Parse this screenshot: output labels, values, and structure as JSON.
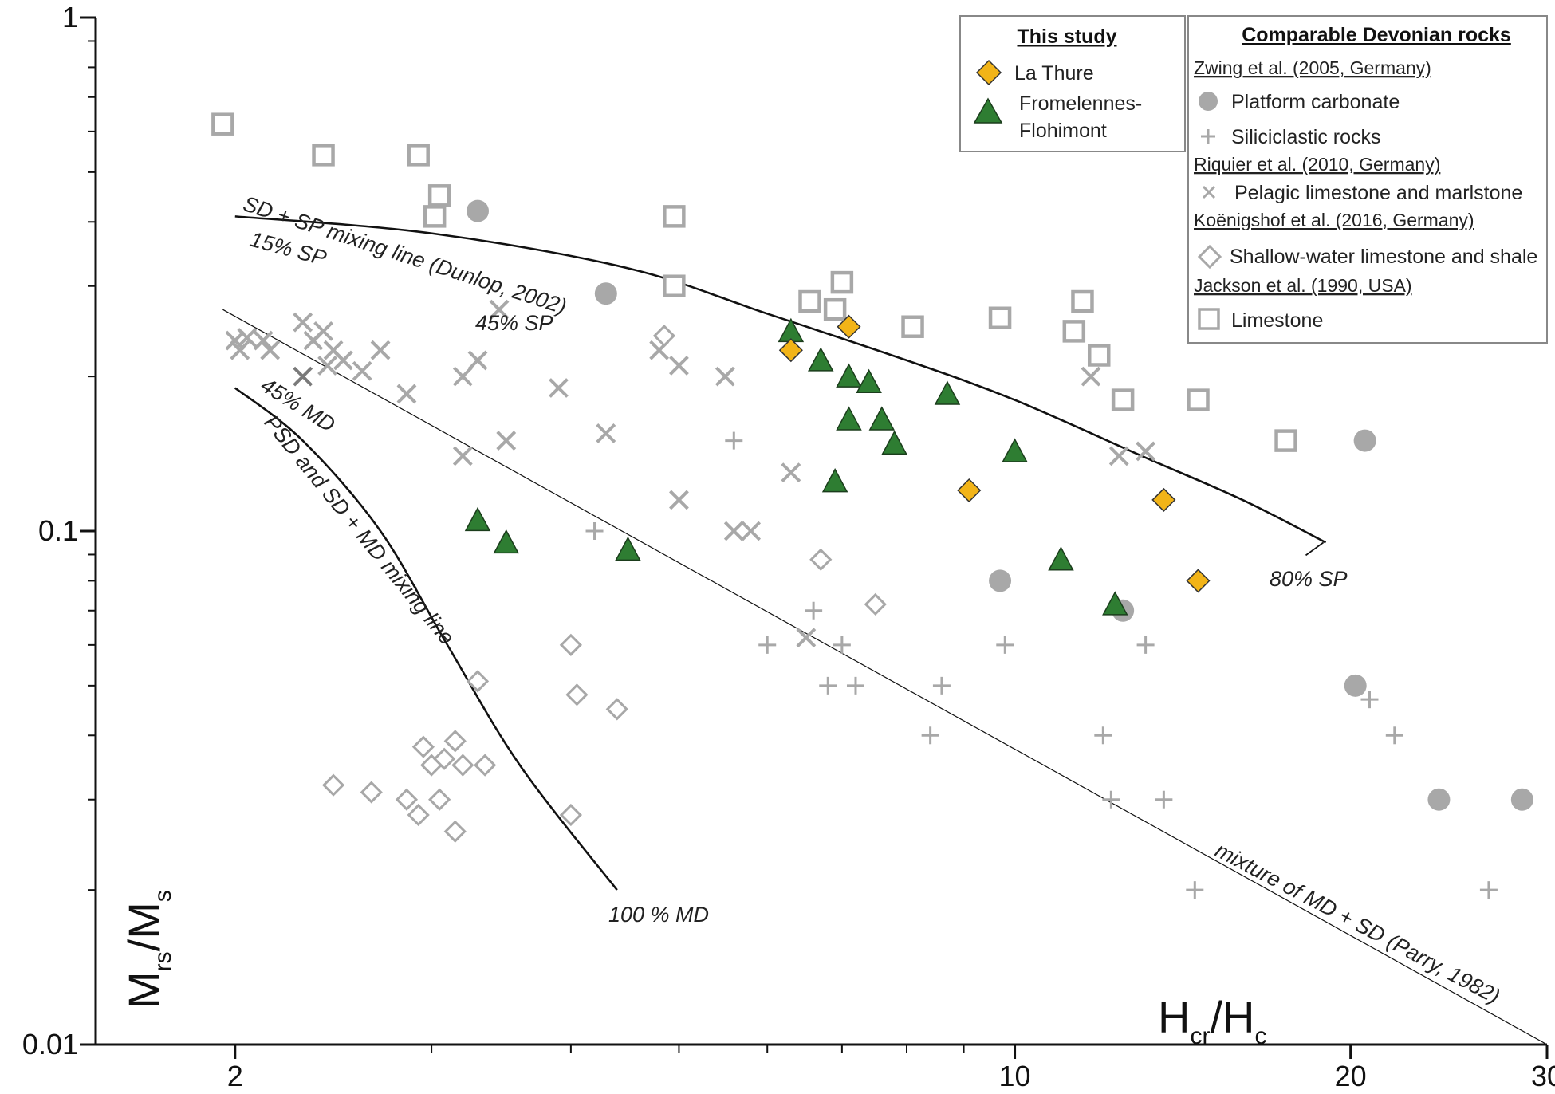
{
  "colors": {
    "la_thure": "#f2b418",
    "fromelennes": "#2e7d32",
    "gray": "#a8a8a8",
    "gray_dark": "#7a7a7a",
    "axis": "#111111"
  },
  "chart_data": {
    "type": "scatter",
    "title": "",
    "xlabel": "Hcr/Hc",
    "xlabel_main": "H",
    "xlabel_sub1": "cr",
    "xlabel_slash": "/H",
    "xlabel_sub2": "c",
    "ylabel": "Mrs/Ms",
    "ylabel_main": "M",
    "ylabel_sub1": "rs",
    "ylabel_slash": "/M",
    "ylabel_sub2": "s",
    "xscale": "log",
    "yscale": "log",
    "xlim": [
      1.5,
      30
    ],
    "ylim": [
      0.01,
      1
    ],
    "x_ticks": [
      2,
      10,
      20,
      30
    ],
    "x_tick_labels": [
      "2",
      "10",
      "20",
      "30"
    ],
    "y_ticks": [
      0.01,
      0.1,
      1
    ],
    "y_tick_labels": [
      "0.01",
      "0.1",
      "1"
    ],
    "series": [
      {
        "name": "La Thure",
        "marker": "diamond-filled",
        "group": "This study",
        "points": [
          [
            6.3,
            0.225
          ],
          [
            7.1,
            0.25
          ],
          [
            9.1,
            0.12
          ],
          [
            13.6,
            0.115
          ],
          [
            14.6,
            0.08
          ]
        ]
      },
      {
        "name": "Fromelennes-Flohimont",
        "marker": "triangle-filled",
        "group": "This study",
        "points": [
          [
            3.3,
            0.105
          ],
          [
            3.5,
            0.095
          ],
          [
            4.5,
            0.092
          ],
          [
            6.3,
            0.245
          ],
          [
            6.7,
            0.215
          ],
          [
            7.1,
            0.2
          ],
          [
            7.4,
            0.195
          ],
          [
            7.1,
            0.165
          ],
          [
            7.6,
            0.165
          ],
          [
            7.8,
            0.148
          ],
          [
            8.7,
            0.185
          ],
          [
            10.0,
            0.143
          ],
          [
            6.9,
            0.125
          ],
          [
            11.0,
            0.088
          ],
          [
            12.3,
            0.072
          ]
        ]
      },
      {
        "name": "Platform carbonate",
        "source": "Zwing et al. (2005, Germany)",
        "marker": "circle",
        "points": [
          [
            3.3,
            0.42
          ],
          [
            4.3,
            0.29
          ],
          [
            9.7,
            0.08
          ],
          [
            12.5,
            0.07
          ],
          [
            20.6,
            0.15
          ],
          [
            20.2,
            0.05
          ],
          [
            24.0,
            0.03
          ],
          [
            28.5,
            0.03
          ]
        ]
      },
      {
        "name": "Siliciclastic rocks",
        "source": "Zwing et al. (2005, Germany)",
        "marker": "plus",
        "points": [
          [
            5.6,
            0.15
          ],
          [
            4.2,
            0.1
          ],
          [
            6.0,
            0.06
          ],
          [
            6.6,
            0.07
          ],
          [
            7.0,
            0.06
          ],
          [
            6.8,
            0.05
          ],
          [
            7.2,
            0.05
          ],
          [
            8.6,
            0.05
          ],
          [
            8.4,
            0.04
          ],
          [
            9.8,
            0.06
          ],
          [
            12.0,
            0.04
          ],
          [
            12.2,
            0.03
          ],
          [
            13.1,
            0.06
          ],
          [
            13.6,
            0.03
          ],
          [
            14.5,
            0.02
          ],
          [
            20.8,
            0.047
          ],
          [
            21.9,
            0.04
          ],
          [
            26.6,
            0.02
          ]
        ]
      },
      {
        "name": "Pelagic limestone and marlstone",
        "source": "Riquier et al. (2010, Germany)",
        "marker": "cross",
        "points": [
          [
            2.0,
            0.235
          ],
          [
            2.02,
            0.225
          ],
          [
            2.05,
            0.238
          ],
          [
            2.12,
            0.235
          ],
          [
            2.15,
            0.225
          ],
          [
            2.3,
            0.255
          ],
          [
            2.35,
            0.235
          ],
          [
            2.4,
            0.245
          ],
          [
            2.45,
            0.225
          ],
          [
            2.5,
            0.215
          ],
          [
            2.6,
            0.205
          ],
          [
            2.7,
            0.225
          ],
          [
            2.42,
            0.21
          ],
          [
            2.85,
            0.185
          ],
          [
            3.2,
            0.2
          ],
          [
            3.3,
            0.215
          ],
          [
            3.45,
            0.27
          ],
          [
            3.2,
            0.14
          ],
          [
            3.5,
            0.15
          ],
          [
            3.9,
            0.19
          ],
          [
            4.3,
            0.155
          ],
          [
            4.8,
            0.225
          ],
          [
            5.0,
            0.21
          ],
          [
            5.5,
            0.2
          ],
          [
            5.0,
            0.115
          ],
          [
            5.6,
            0.1
          ],
          [
            5.8,
            0.1
          ],
          [
            6.3,
            0.13
          ],
          [
            6.5,
            0.062
          ],
          [
            11.7,
            0.2
          ],
          [
            12.4,
            0.14
          ],
          [
            13.1,
            0.143
          ]
        ]
      },
      {
        "name": "Pelagic limestone and marlstone (dark)",
        "source": "Riquier et al. (2010, Germany)",
        "marker": "cross-dark",
        "points": [
          [
            2.3,
            0.2
          ]
        ]
      },
      {
        "name": "Shallow-water limestone and shale",
        "source": "Koënigshof et al. (2016, Germany)",
        "marker": "diamond-open",
        "points": [
          [
            4.85,
            0.24
          ],
          [
            6.7,
            0.088
          ],
          [
            7.5,
            0.072
          ],
          [
            4.0,
            0.06
          ],
          [
            4.05,
            0.048
          ],
          [
            4.4,
            0.045
          ],
          [
            3.3,
            0.051
          ],
          [
            2.95,
            0.038
          ],
          [
            3.0,
            0.035
          ],
          [
            3.08,
            0.036
          ],
          [
            3.15,
            0.039
          ],
          [
            3.2,
            0.035
          ],
          [
            3.35,
            0.035
          ],
          [
            3.05,
            0.03
          ],
          [
            3.15,
            0.026
          ],
          [
            2.45,
            0.032
          ],
          [
            2.65,
            0.031
          ],
          [
            2.85,
            0.03
          ],
          [
            2.92,
            0.028
          ],
          [
            4.0,
            0.028
          ]
        ]
      },
      {
        "name": "Limestone",
        "source": "Jackson et al. (1990, USA)",
        "marker": "square-open",
        "points": [
          [
            1.95,
            0.62
          ],
          [
            2.4,
            0.54
          ],
          [
            2.92,
            0.54
          ],
          [
            3.05,
            0.45
          ],
          [
            3.02,
            0.41
          ],
          [
            4.95,
            0.41
          ],
          [
            4.95,
            0.3
          ],
          [
            6.55,
            0.28
          ],
          [
            6.9,
            0.27
          ],
          [
            7.0,
            0.305
          ],
          [
            8.1,
            0.25
          ],
          [
            9.7,
            0.26
          ],
          [
            11.3,
            0.245
          ],
          [
            11.5,
            0.28
          ],
          [
            11.9,
            0.22
          ],
          [
            12.5,
            0.18
          ],
          [
            14.6,
            0.18
          ],
          [
            17.5,
            0.15
          ]
        ]
      }
    ],
    "curves": [
      {
        "name": "SD + SP mixing line (Dunlop, 2002)",
        "stroke": "bold",
        "points": [
          [
            2.0,
            0.41
          ],
          [
            3.0,
            0.38
          ],
          [
            4.5,
            0.325
          ],
          [
            6.0,
            0.265
          ],
          [
            8.0,
            0.215
          ],
          [
            10.0,
            0.18
          ],
          [
            13.0,
            0.14
          ],
          [
            16.0,
            0.115
          ],
          [
            19.0,
            0.095
          ]
        ]
      },
      {
        "name": "mixture of MD + SD (Parry, 1982)",
        "stroke": "thin",
        "points": [
          [
            1.95,
            0.27
          ],
          [
            30,
            0.01
          ]
        ]
      },
      {
        "name": "PSD and SD + MD mixing line",
        "stroke": "bold",
        "points": [
          [
            2.0,
            0.19
          ],
          [
            2.3,
            0.15
          ],
          [
            2.7,
            0.1
          ],
          [
            3.1,
            0.06
          ],
          [
            3.6,
            0.035
          ],
          [
            4.4,
            0.02
          ]
        ]
      }
    ],
    "annotations": [
      {
        "text": "SD + SP mixing line (Dunlop, 2002)"
      },
      {
        "text": "15% SP"
      },
      {
        "text": "45% SP"
      },
      {
        "text": "80% SP"
      },
      {
        "text": "45% MD"
      },
      {
        "text": "PSD and SD + MD mixing line"
      },
      {
        "text": "100 % MD"
      },
      {
        "text": "mixture of MD + SD (Parry, 1982)"
      }
    ],
    "legend": {
      "placement": "top-right",
      "study_title": "This study",
      "study_items": [
        {
          "label": "La Thure",
          "marker": "diamond-filled"
        },
        {
          "label_line1": "Fromelennes-",
          "label_line2": "Flohimont",
          "marker": "triangle-filled"
        }
      ],
      "comp_title": "Comparable Devonian rocks",
      "comp_entries": [
        {
          "kind": "source",
          "text": "Zwing et al. (2005, Germany)"
        },
        {
          "kind": "item",
          "text": "Platform carbonate",
          "marker": "circle"
        },
        {
          "kind": "item",
          "text": "Siliciclastic rocks",
          "marker": "plus"
        },
        {
          "kind": "source",
          "text": "Riquier et al. (2010, Germany)"
        },
        {
          "kind": "item",
          "text": "Pelagic limestone and marlstone",
          "marker": "cross"
        },
        {
          "kind": "source",
          "text": "Koënigshof et al. (2016, Germany)"
        },
        {
          "kind": "item",
          "text": "Shallow-water limestone and shale",
          "marker": "diamond-open"
        },
        {
          "kind": "source",
          "text": "Jackson et al. (1990, USA)"
        },
        {
          "kind": "item",
          "text": "Limestone",
          "marker": "square-open"
        }
      ]
    }
  }
}
